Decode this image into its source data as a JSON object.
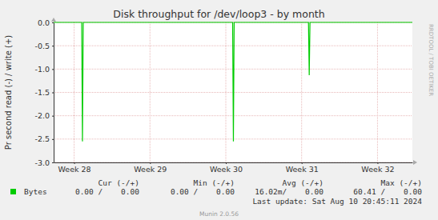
{
  "chart_data": {
    "type": "line",
    "title": "Disk throughput for /dev/loop3 - by month",
    "y_label": "Pr second read (-) / write (+)",
    "x": [
      27.73,
      28.1,
      28.11,
      28.12,
      30.09,
      30.1,
      30.11,
      31.09,
      31.1,
      31.11,
      32.46
    ],
    "series": [
      {
        "name": "Bytes",
        "color": "#00cc00",
        "values": [
          0,
          0,
          -2.55,
          0,
          0,
          -2.55,
          0,
          0,
          -1.13,
          0,
          0
        ]
      }
    ],
    "xlim": [
      27.73,
      32.46
    ],
    "xticks": [
      {
        "value": 28,
        "label": "Week 28"
      },
      {
        "value": 29,
        "label": "Week 29"
      },
      {
        "value": 30,
        "label": "Week 30"
      },
      {
        "value": 31,
        "label": "Week 31"
      },
      {
        "value": 32,
        "label": "Week 32"
      }
    ],
    "ylim": [
      -3,
      0
    ],
    "yticks": [
      {
        "value": 0,
        "label": "0.0"
      },
      -0.5,
      {
        "value": -1,
        "label": "-1.0"
      },
      -1.5,
      {
        "value": -2,
        "label": "-2.0"
      },
      -2.5,
      {
        "value": -3,
        "label": "-3.0"
      }
    ],
    "grid": true,
    "legend_headers": [
      "Cur (-/+)",
      "Min (-/+)",
      "Avg (-/+)",
      "Max (-/+)"
    ],
    "legend_stats": [
      "0.00 /    0.00",
      "0.00 /    0.00",
      "16.02m/    0.00",
      "60.41 /    0.00"
    ],
    "last_update": "Last update: Sat Aug 10 20:45:11 2024",
    "footer": "Munin 2.0.56",
    "watermark": "RRDTOOL / TOBI OETIKER"
  }
}
